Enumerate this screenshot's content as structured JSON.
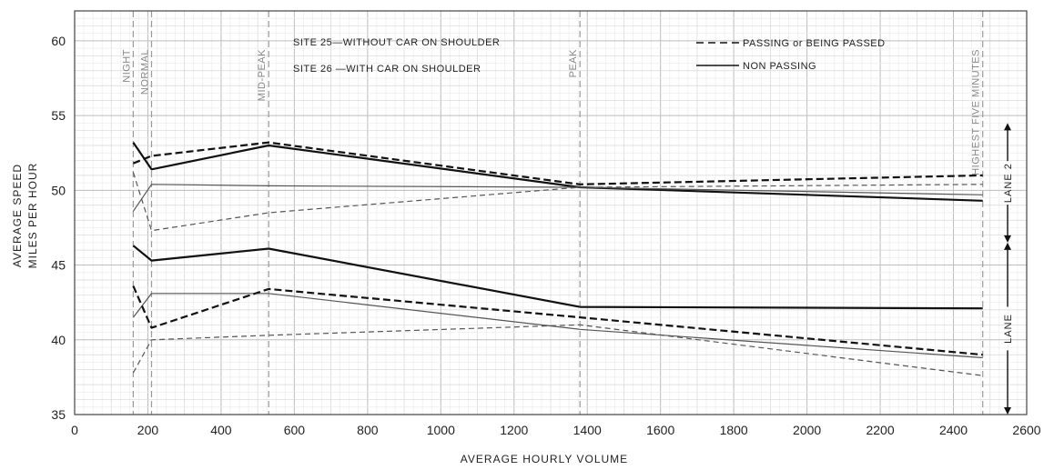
{
  "chart_data": {
    "type": "line",
    "title": "",
    "xlabel": "AVERAGE HOURLY VOLUME",
    "ylabel_lines": [
      "AVERAGE SPEED",
      "MILES PER HOUR"
    ],
    "xlim": [
      0,
      2600
    ],
    "ylim": [
      35,
      62
    ],
    "x_ticks": [
      0,
      200,
      400,
      600,
      800,
      1000,
      1200,
      1400,
      1600,
      1800,
      2000,
      2200,
      2400,
      2600
    ],
    "x_tick_labels": [
      "0",
      "200",
      "400",
      "600",
      "800",
      "1000",
      "1200",
      "1400",
      "1600",
      "1800",
      "2000",
      "2200",
      "2400",
      "2600"
    ],
    "y_ticks": [
      35,
      40,
      45,
      50,
      55,
      60
    ],
    "y_tick_labels": [
      "35",
      "40",
      "45",
      "50",
      "55",
      "60"
    ],
    "grid": true,
    "site_notes": [
      "SITE 25—WITHOUT CAR ON SHOULDER",
      "SITE 26 —WITH CAR ON SHOULDER"
    ],
    "legend": [
      {
        "label": "PASSING or BEING PASSED",
        "style": "dashed"
      },
      {
        "label": "NON PASSING",
        "style": "solid"
      }
    ],
    "period_markers": [
      {
        "x": 160,
        "label": "NIGHT"
      },
      {
        "x": 210,
        "label": "NORMAL"
      },
      {
        "x": 530,
        "label": "MID-PEAK"
      },
      {
        "x": 1380,
        "label": "PEAK"
      },
      {
        "x": 2480,
        "label": "HIGHEST FIVE MINUTES"
      }
    ],
    "lane_labels": [
      {
        "label": "LANE 2",
        "y_range": [
          46.5,
          54.5
        ]
      },
      {
        "label": "LANE",
        "y_range": [
          35,
          46.5
        ]
      }
    ],
    "series": [
      {
        "style": "solid",
        "weight": "heavy",
        "x": [
          160,
          210,
          530,
          1380,
          2480
        ],
        "y": [
          53.2,
          51.4,
          53.0,
          50.2,
          49.3
        ]
      },
      {
        "style": "dashed",
        "weight": "heavy",
        "x": [
          160,
          210,
          530,
          1380,
          2480
        ],
        "y": [
          51.8,
          52.3,
          53.2,
          50.4,
          51.0
        ]
      },
      {
        "style": "solid",
        "weight": "light",
        "x": [
          160,
          210,
          530,
          1380,
          2480
        ],
        "y": [
          48.6,
          50.4,
          50.3,
          50.2,
          49.7
        ]
      },
      {
        "style": "dashed",
        "weight": "light",
        "x": [
          160,
          210,
          530,
          1380,
          2480
        ],
        "y": [
          51.2,
          47.3,
          48.5,
          50.2,
          50.4
        ]
      },
      {
        "style": "solid",
        "weight": "heavy",
        "x": [
          160,
          210,
          530,
          1380,
          2480
        ],
        "y": [
          46.3,
          45.3,
          46.1,
          42.2,
          42.1
        ]
      },
      {
        "style": "solid",
        "weight": "light",
        "x": [
          160,
          210,
          530,
          1380,
          2480
        ],
        "y": [
          41.5,
          43.1,
          43.1,
          40.7,
          38.8
        ]
      },
      {
        "style": "dashed",
        "weight": "heavy",
        "x": [
          160,
          210,
          530,
          1380,
          2480
        ],
        "y": [
          43.6,
          40.8,
          43.4,
          41.5,
          39.0
        ]
      },
      {
        "style": "dashed",
        "weight": "light",
        "x": [
          160,
          210,
          530,
          1380,
          2480
        ],
        "y": [
          37.8,
          40.0,
          40.3,
          41.0,
          37.6
        ]
      }
    ]
  }
}
